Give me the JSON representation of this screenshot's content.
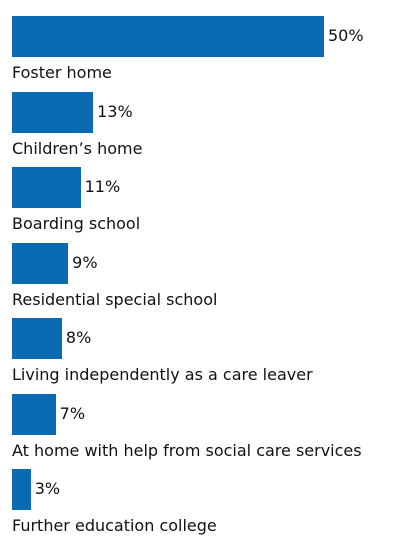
{
  "chart_data": {
    "type": "bar",
    "orientation": "horizontal",
    "bar_color": "#0a6bb3",
    "categories": [
      "Foster home",
      "Children’s home",
      "Boarding school",
      "Residential special school",
      "Living independently as a care leaver",
      "At home with help from social care services",
      "Further education college"
    ],
    "values": [
      50,
      13,
      11,
      9,
      8,
      7,
      3
    ],
    "value_labels": [
      "50%",
      "13%",
      "11%",
      "9%",
      "8%",
      "7%",
      "3%"
    ],
    "title": "",
    "xlabel": "",
    "ylabel": "",
    "xlim": [
      0,
      50
    ],
    "grid": false,
    "legend": "none"
  }
}
